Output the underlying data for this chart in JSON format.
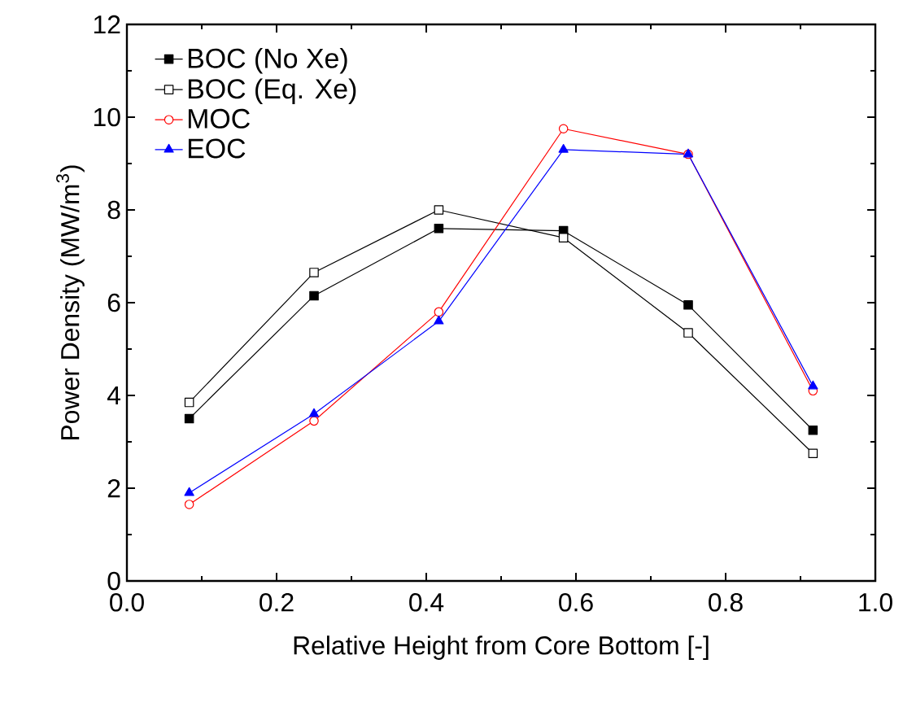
{
  "chart_data": {
    "type": "line",
    "xlabel": "Relative Height from Core Bottom [-]",
    "ylabel": "Power Density (MW/m$^{3}$)",
    "x": [
      0.0833,
      0.25,
      0.4167,
      0.5833,
      0.75,
      0.9167
    ],
    "series": [
      {
        "name": "BOC (No Xe)",
        "color": "#000000",
        "marker": "square",
        "values": [
          3.5,
          6.15,
          7.6,
          7.55,
          5.95,
          3.25
        ]
      },
      {
        "name": "BOC (Eq. Xe)",
        "color": "#000000",
        "marker": "square-open",
        "values": [
          3.85,
          6.65,
          8.0,
          7.4,
          5.35,
          2.75
        ]
      },
      {
        "name": "MOC",
        "color": "#ff0000",
        "marker": "circle-open",
        "values": [
          1.65,
          3.45,
          5.8,
          9.75,
          9.2,
          4.1
        ]
      },
      {
        "name": "EOC",
        "color": "#0000ff",
        "marker": "triangle",
        "values": [
          1.9,
          3.6,
          5.6,
          9.3,
          9.2,
          4.2
        ]
      }
    ],
    "xlim": [
      0,
      1
    ],
    "ylim": [
      0,
      12
    ],
    "xticks": [
      {
        "value": 0,
        "label": "0.0"
      },
      {
        "value": 0.2,
        "label": "0.2"
      },
      {
        "value": 0.4,
        "label": "0.4"
      },
      {
        "value": 0.6,
        "label": "0.6"
      },
      {
        "value": 0.8,
        "label": "0.8"
      },
      {
        "value": 1,
        "label": "1.0"
      }
    ],
    "yticks": [
      0,
      2,
      4,
      6,
      8,
      10,
      12
    ],
    "grid": false,
    "legend": "top left",
    "line_style": "solid"
  }
}
